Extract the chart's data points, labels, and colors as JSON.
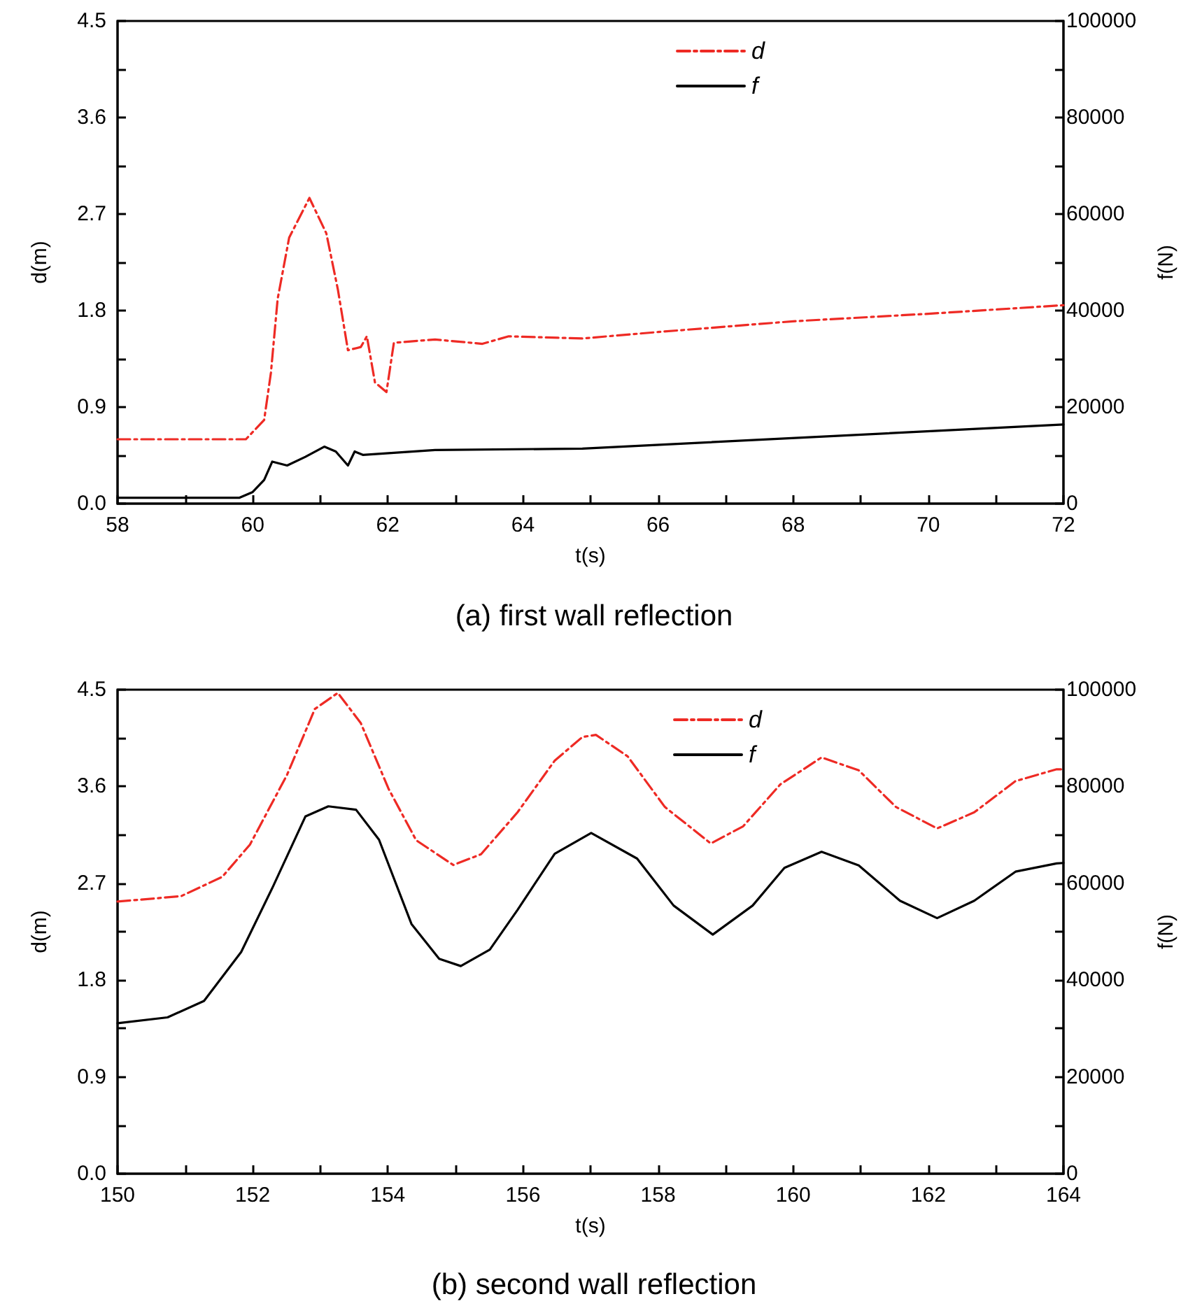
{
  "chart_data": [
    {
      "type": "line",
      "title": "(a) first wall reflection",
      "xlabel": "t(s)",
      "ylabel": "d(m)",
      "y2label": "f(N)",
      "legend": "top",
      "grid": false,
      "xlim": [
        58,
        72
      ],
      "xticks": [
        58,
        {
          "value": 59,
          "label": null
        },
        60,
        {
          "value": 61,
          "label": null
        },
        62,
        {
          "value": 63,
          "label": null
        },
        64,
        {
          "value": 65,
          "label": null
        },
        66,
        {
          "value": 67,
          "label": null
        },
        68,
        {
          "value": 69,
          "label": null
        },
        70,
        {
          "value": 71,
          "label": null
        },
        72
      ],
      "ylim": [
        0,
        4.5
      ],
      "yticks": [
        {
          "value": 0,
          "label": "0.0"
        },
        {
          "value": 0.45,
          "label": null
        },
        0.9,
        {
          "value": 1.35,
          "label": null
        },
        1.8,
        {
          "value": 2.25,
          "label": null
        },
        2.7,
        {
          "value": 3.15,
          "label": null
        },
        3.6,
        {
          "value": 4.05,
          "label": null
        },
        4.5
      ],
      "y2lim": [
        0,
        100000
      ],
      "y2ticks": [
        0,
        {
          "value": 10000,
          "label": null
        },
        20000,
        {
          "value": 30000,
          "label": null
        },
        40000,
        {
          "value": 50000,
          "label": null
        },
        60000,
        {
          "value": 70000,
          "label": null
        },
        80000,
        {
          "value": 90000,
          "label": null
        },
        100000
      ],
      "series": [
        {
          "name": "d",
          "color": "#ee2a24",
          "line_style": "dashed",
          "x": [
            58,
            59.9,
            60.17,
            60.27,
            60.37,
            60.54,
            60.84,
            61.09,
            61.26,
            61.41,
            61.6,
            61.69,
            61.81,
            61.98,
            62.09,
            62.7,
            63.4,
            63.79,
            64.88,
            66,
            68,
            70,
            72
          ],
          "values": [
            0.6,
            0.6,
            0.78,
            1.22,
            1.91,
            2.48,
            2.85,
            2.52,
            2.0,
            1.43,
            1.46,
            1.56,
            1.13,
            1.04,
            1.5,
            1.53,
            1.49,
            1.56,
            1.54,
            1.6,
            1.7,
            1.77,
            1.85
          ]
        },
        {
          "name": "f",
          "color": "#000000",
          "line_style": "solid",
          "axis": "y2",
          "x": [
            58,
            59.8,
            60.0,
            60.17,
            60.29,
            60.51,
            60.78,
            61.06,
            61.23,
            61.41,
            61.51,
            61.63,
            62.7,
            64.88,
            72
          ],
          "values": [
            1200,
            1200,
            2400,
            4900,
            8700,
            7900,
            9700,
            11800,
            10800,
            7900,
            10800,
            10100,
            11100,
            11400,
            16400
          ]
        }
      ]
    },
    {
      "type": "line",
      "title": "(b) second wall reflection",
      "xlabel": "t(s)",
      "ylabel": "d(m)",
      "y2label": "f(N)",
      "legend": "top",
      "grid": false,
      "xlim": [
        150,
        164
      ],
      "xticks": [
        150,
        {
          "value": 151,
          "label": null
        },
        152,
        {
          "value": 153,
          "label": null
        },
        154,
        {
          "value": 155,
          "label": null
        },
        156,
        {
          "value": 157,
          "label": null
        },
        158,
        {
          "value": 159,
          "label": null
        },
        160,
        {
          "value": 161,
          "label": null
        },
        162,
        {
          "value": 163,
          "label": null
        },
        164
      ],
      "ylim": [
        0,
        4.5
      ],
      "yticks": [
        {
          "value": 0,
          "label": "0.0"
        },
        {
          "value": 0.45,
          "label": null
        },
        0.9,
        {
          "value": 1.35,
          "label": null
        },
        1.8,
        {
          "value": 2.25,
          "label": null
        },
        2.7,
        {
          "value": 3.15,
          "label": null
        },
        3.6,
        {
          "value": 4.05,
          "label": null
        },
        4.5
      ],
      "y2lim": [
        0,
        100000
      ],
      "y2ticks": [
        0,
        {
          "value": 10000,
          "label": null
        },
        20000,
        {
          "value": 30000,
          "label": null
        },
        40000,
        {
          "value": 50000,
          "label": null
        },
        60000,
        {
          "value": 70000,
          "label": null
        },
        80000,
        {
          "value": 90000,
          "label": null
        },
        100000
      ],
      "series": [
        {
          "name": "d",
          "color": "#ee2a24",
          "line_style": "dashed",
          "x": [
            150,
            150.94,
            151.55,
            151.96,
            152.51,
            152.92,
            153.26,
            153.6,
            154.01,
            154.42,
            154.97,
            155.38,
            155.92,
            156.47,
            156.88,
            157.08,
            157.55,
            158.1,
            158.78,
            159.26,
            159.81,
            160.42,
            160.97,
            161.52,
            162.13,
            162.68,
            163.29,
            163.9,
            164
          ],
          "values": [
            2.53,
            2.58,
            2.76,
            3.06,
            3.71,
            4.32,
            4.47,
            4.19,
            3.58,
            3.1,
            2.87,
            2.97,
            3.36,
            3.84,
            4.06,
            4.08,
            3.88,
            3.41,
            3.07,
            3.23,
            3.62,
            3.87,
            3.75,
            3.41,
            3.21,
            3.36,
            3.65,
            3.76,
            3.76
          ]
        },
        {
          "name": "f",
          "color": "#000000",
          "line_style": "solid",
          "axis": "y2",
          "x": [
            150,
            150.74,
            151.28,
            151.83,
            152.3,
            152.78,
            153.12,
            153.53,
            153.87,
            154.35,
            154.76,
            155.08,
            155.51,
            155.92,
            156.47,
            157.01,
            157.69,
            158.23,
            158.81,
            159.4,
            159.87,
            160.42,
            160.97,
            161.58,
            162.13,
            162.68,
            163.29,
            163.9,
            164
          ],
          "values": [
            31100,
            32300,
            35700,
            45800,
            59300,
            73800,
            75900,
            75200,
            69000,
            51600,
            44400,
            42900,
            46300,
            54500,
            66100,
            70400,
            65100,
            55400,
            49400,
            55400,
            63200,
            66500,
            63700,
            56400,
            52800,
            56400,
            62400,
            64100,
            64200
          ]
        }
      ]
    }
  ]
}
